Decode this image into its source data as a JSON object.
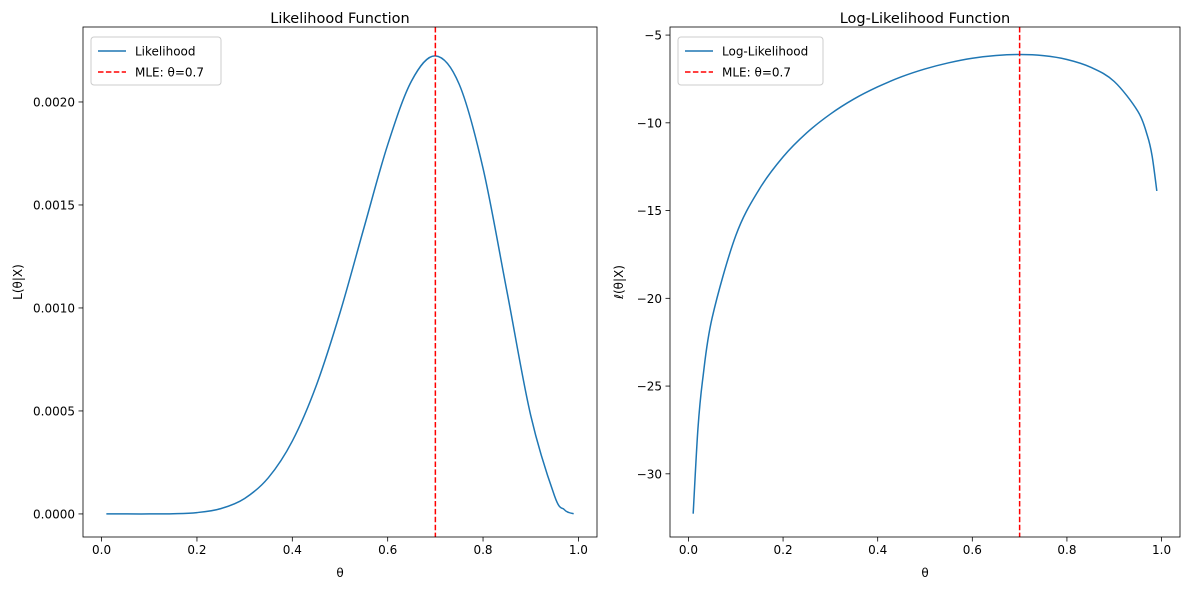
{
  "chart_data": [
    {
      "type": "line",
      "title": "Likelihood Function",
      "xlabel": "θ",
      "ylabel": "L(θ|X)",
      "xlim": [
        -0.039,
        1.039
      ],
      "ylim": [
        -0.000112,
        0.002364
      ],
      "xticks": [
        0.0,
        0.2,
        0.4,
        0.6,
        0.8,
        1.0
      ],
      "xtick_labels": [
        "0.0",
        "0.2",
        "0.4",
        "0.6",
        "0.8",
        "1.0"
      ],
      "yticks": [
        0.0,
        0.0005,
        0.001,
        0.0015,
        0.002
      ],
      "ytick_labels": [
        "0.0000",
        "0.0005",
        "0.0010",
        "0.0015",
        "0.0020"
      ],
      "grid": false,
      "legend_position": "top-left",
      "series": [
        {
          "name": "Likelihood",
          "color": "#1f77b4",
          "x": [
            0.01,
            0.05,
            0.1,
            0.15,
            0.2,
            0.25,
            0.3,
            0.35,
            0.4,
            0.45,
            0.5,
            0.55,
            0.6,
            0.65,
            0.7,
            0.75,
            0.8,
            0.85,
            0.9,
            0.95,
            0.97,
            0.98,
            0.99
          ],
          "y": [
            0,
            6.7e-10,
            7.29e-08,
            1.05e-06,
            6.55e-06,
            2.575e-05,
            7.5e-05,
            0.0001766,
            0.0003539,
            0.0006217,
            0.0009766,
            0.001387,
            0.001792,
            0.002102,
            0.002224,
            0.002086,
            0.001678,
            0.001082,
            0.0004783,
            8.73e-05,
            2.18e-05,
            6.94e-06,
            9.3e-07
          ]
        }
      ],
      "vline": {
        "name": "MLE: θ=0.7",
        "x": 0.7,
        "color": "#ff0000",
        "style": "dashed"
      }
    },
    {
      "type": "line",
      "title": "Log-Likelihood Function",
      "xlabel": "θ",
      "ylabel": "ℓ(θ|X)",
      "xlim": [
        -0.039,
        1.039
      ],
      "ylim": [
        -33.6,
        -4.54
      ],
      "xticks": [
        0.0,
        0.2,
        0.4,
        0.6,
        0.8,
        1.0
      ],
      "xtick_labels": [
        "0.0",
        "0.2",
        "0.4",
        "0.6",
        "0.8",
        "1.0"
      ],
      "yticks": [
        -30,
        -25,
        -20,
        -15,
        -10,
        -5
      ],
      "ytick_labels": [
        "−30",
        "−25",
        "−20",
        "−15",
        "−10",
        "−5"
      ],
      "grid": false,
      "legend_position": "top-left",
      "series": [
        {
          "name": "Log-Likelihood",
          "color": "#1f77b4",
          "x": [
            0.01,
            0.02,
            0.03,
            0.05,
            0.1,
            0.15,
            0.2,
            0.25,
            0.3,
            0.35,
            0.4,
            0.45,
            0.5,
            0.55,
            0.6,
            0.65,
            0.7,
            0.75,
            0.8,
            0.85,
            0.9,
            0.95,
            0.97,
            0.98,
            0.99
          ],
          "y": [
            -32.27,
            -27.45,
            -24.64,
            -21.12,
            -16.43,
            -13.77,
            -11.94,
            -10.57,
            -9.5,
            -8.64,
            -7.95,
            -7.38,
            -6.93,
            -6.58,
            -6.32,
            -6.165,
            -6.109,
            -6.173,
            -6.39,
            -6.83,
            -7.645,
            -9.35,
            -10.73,
            -11.88,
            -13.88
          ]
        }
      ],
      "vline": {
        "name": "MLE: θ=0.7",
        "x": 0.7,
        "color": "#ff0000",
        "style": "dashed"
      }
    }
  ]
}
